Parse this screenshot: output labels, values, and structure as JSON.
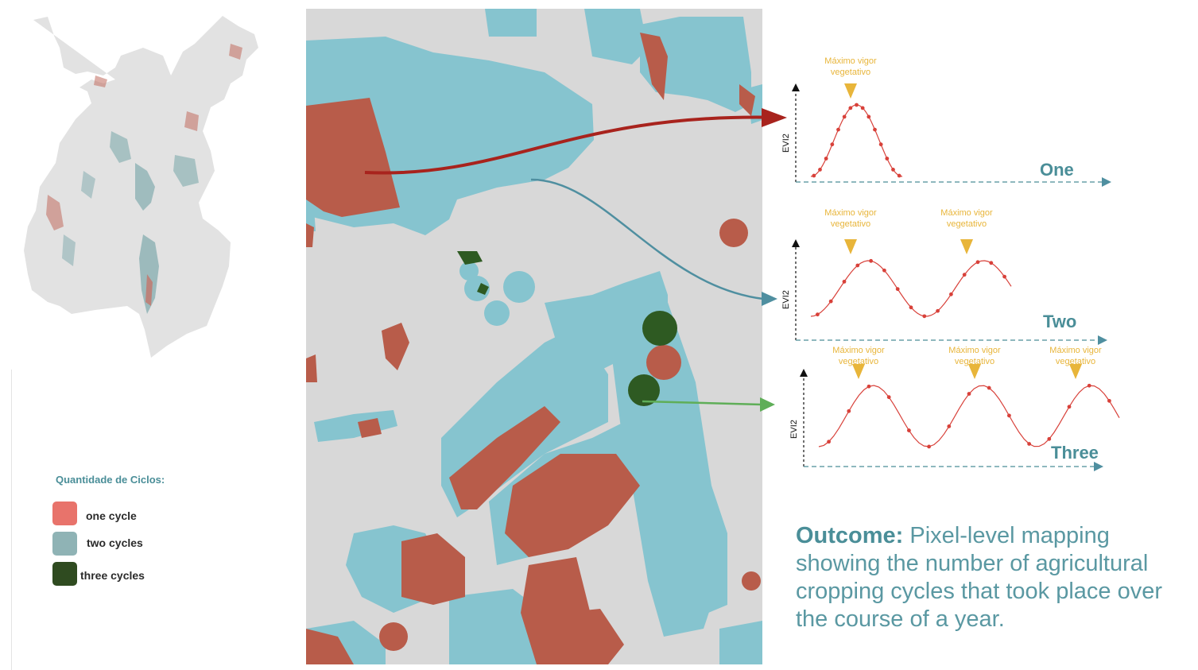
{
  "legend": {
    "title": "Quantidade de Ciclos:",
    "items": [
      {
        "label": "one cycle",
        "color": "#e8736b"
      },
      {
        "label": "two cycles",
        "color": "#8fb3b5"
      },
      {
        "label": "three cycles",
        "color": "#2f4b20"
      }
    ]
  },
  "curves": {
    "annotation_line1": "Máximo vigor",
    "annotation_line2": "vegetativo",
    "axis_label": "EVI2",
    "panels": [
      {
        "label": "One",
        "peaks": 1,
        "arrow_color": "#a8231d"
      },
      {
        "label": "Two",
        "peaks": 2,
        "arrow_color": "#4f8fa0"
      },
      {
        "label": "Three",
        "peaks": 3,
        "arrow_color": "#5fae58"
      }
    ]
  },
  "outcome": {
    "heading": "Outcome:",
    "text": " Pixel-level mapping showing the number of agricultural cropping cycles that took place over the course of a year."
  },
  "colors": {
    "one_cycle": "#b85c4a",
    "two_cycles": "#86c4cf",
    "three_cycles": "#2e5a22",
    "background_map": "#d8d8d8",
    "annotation": "#e8b53a",
    "curve": "#d8413a",
    "label": "#4a8e98"
  }
}
